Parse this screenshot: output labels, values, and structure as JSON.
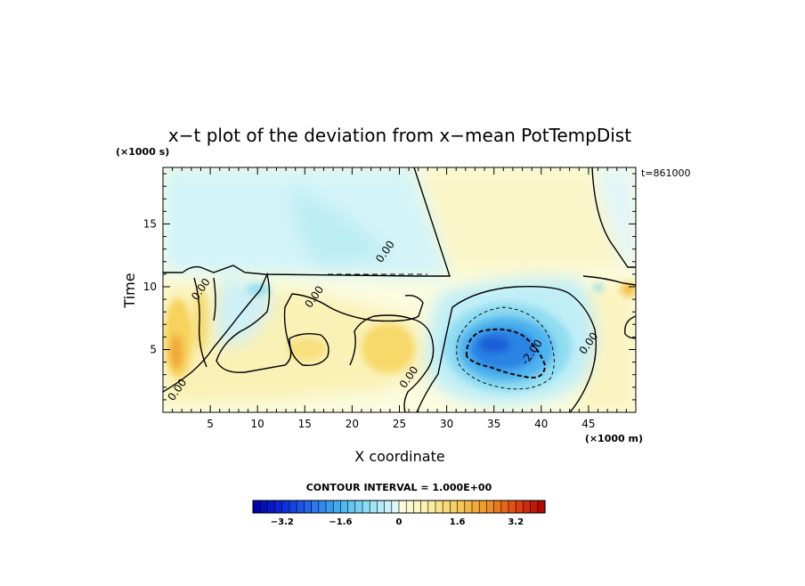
{
  "chart_data": {
    "type": "heatmap",
    "title": "x−t plot of the deviation from x−mean PotTempDist",
    "xlabel": "X coordinate",
    "ylabel": "Time",
    "x_unit": "(×1000 m)",
    "y_unit": "(×1000 s)",
    "annotation": "t=861000",
    "xlim": [
      0,
      50
    ],
    "ylim": [
      0,
      19.5
    ],
    "x_ticks": [
      5,
      10,
      15,
      20,
      25,
      30,
      35,
      40,
      45
    ],
    "y_ticks": [
      5,
      10,
      15
    ],
    "contour_labels": [
      {
        "text": "0.00",
        "x": 23.5,
        "y": 12.8
      },
      {
        "text": "0.00",
        "x": 16.0,
        "y": 9.2
      },
      {
        "text": "0.00",
        "x": 4.0,
        "y": 9.8
      },
      {
        "text": "0.00",
        "x": 26.0,
        "y": 2.8
      },
      {
        "text": "0.00",
        "x": 45.0,
        "y": 5.5
      },
      {
        "text": "0.00",
        "x": 1.5,
        "y": 1.8
      },
      {
        "text": "-2.00",
        "x": 39.0,
        "y": 4.8
      }
    ],
    "colorbar": {
      "title": "CONTOUR INTERVAL = 1.000E+00",
      "range": [
        -4,
        4
      ],
      "interval": 0.2,
      "ticks": [
        "−3.2",
        "−1.6",
        "0",
        "1.6",
        "3.2"
      ]
    }
  }
}
